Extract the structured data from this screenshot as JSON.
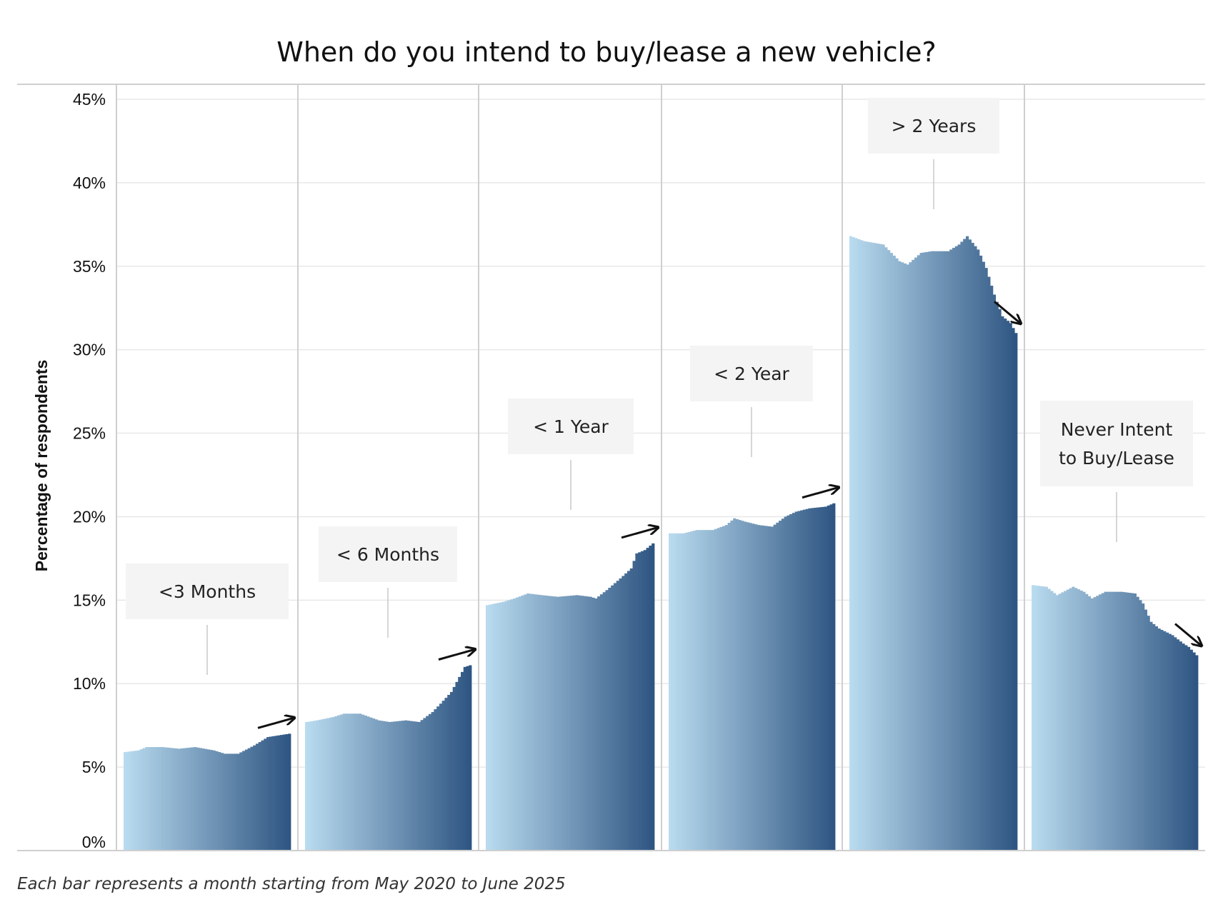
{
  "chart_data": {
    "type": "bar",
    "title": "When do you intend to buy/lease a new vehicle?",
    "ylabel": "Percentage of respondents",
    "ylim": [
      0,
      45
    ],
    "yticks": [
      "0%",
      "5%",
      "10%",
      "15%",
      "20%",
      "25%",
      "30%",
      "35%",
      "40%",
      "45%"
    ],
    "grid": true,
    "caption": "Each bar represents a month starting from May 2020 to June 2025",
    "colors": {
      "start": "#b9dbef",
      "end": "#2f5683",
      "gridline": "#e8e8e8",
      "divider": "#cfcfcf",
      "label_bg": "#f4f4f4"
    },
    "series": [
      {
        "name": "<3 Months",
        "trend": "up",
        "anchors": [
          [
            0,
            5.9
          ],
          [
            5,
            6.0
          ],
          [
            8,
            6.2
          ],
          [
            14,
            6.2
          ],
          [
            20,
            6.1
          ],
          [
            26,
            6.2
          ],
          [
            33,
            6.0
          ],
          [
            37,
            5.8
          ],
          [
            42,
            5.8
          ],
          [
            48,
            6.3
          ],
          [
            53,
            6.8
          ],
          [
            61,
            7.0
          ]
        ]
      },
      {
        "name": "< 6 Months",
        "trend": "up",
        "anchors": [
          [
            0,
            7.7
          ],
          [
            4,
            7.8
          ],
          [
            10,
            8.0
          ],
          [
            14,
            8.2
          ],
          [
            20,
            8.2
          ],
          [
            27,
            7.8
          ],
          [
            31,
            7.7
          ],
          [
            37,
            7.8
          ],
          [
            42,
            7.7
          ],
          [
            47,
            8.3
          ],
          [
            50,
            8.8
          ],
          [
            54,
            9.5
          ],
          [
            57,
            10.4
          ],
          [
            59,
            11.0
          ],
          [
            61,
            11.1
          ]
        ]
      },
      {
        "name": "< 1 Year",
        "trend": "up",
        "anchors": [
          [
            0,
            14.7
          ],
          [
            6,
            14.9
          ],
          [
            10,
            15.1
          ],
          [
            15,
            15.4
          ],
          [
            20,
            15.3
          ],
          [
            26,
            15.2
          ],
          [
            33,
            15.3
          ],
          [
            38,
            15.2
          ],
          [
            40,
            15.1
          ],
          [
            44,
            15.6
          ],
          [
            49,
            16.3
          ],
          [
            53,
            16.9
          ],
          [
            55,
            17.8
          ],
          [
            58,
            18.0
          ],
          [
            61,
            18.4
          ]
        ]
      },
      {
        "name": "< 2 Year",
        "trend": "up",
        "anchors": [
          [
            0,
            19.0
          ],
          [
            5,
            19.0
          ],
          [
            10,
            19.2
          ],
          [
            16,
            19.2
          ],
          [
            21,
            19.5
          ],
          [
            24,
            19.9
          ],
          [
            28,
            19.7
          ],
          [
            33,
            19.5
          ],
          [
            38,
            19.4
          ],
          [
            43,
            20.0
          ],
          [
            47,
            20.3
          ],
          [
            52,
            20.5
          ],
          [
            58,
            20.6
          ],
          [
            61,
            20.8
          ]
        ]
      },
      {
        "name": "> 2 Years",
        "trend": "down",
        "anchors": [
          [
            0,
            36.8
          ],
          [
            5,
            36.5
          ],
          [
            12,
            36.3
          ],
          [
            18,
            35.3
          ],
          [
            21,
            35.1
          ],
          [
            26,
            35.8
          ],
          [
            30,
            35.9
          ],
          [
            36,
            35.9
          ],
          [
            40,
            36.3
          ],
          [
            43,
            36.8
          ],
          [
            47,
            36.0
          ],
          [
            50,
            34.9
          ],
          [
            53,
            33.3
          ],
          [
            56,
            32.0
          ],
          [
            59,
            31.6
          ],
          [
            61,
            31.0
          ]
        ]
      },
      {
        "name": "Never Intent to Buy/Lease",
        "trend": "down",
        "anchors": [
          [
            0,
            15.9
          ],
          [
            5,
            15.8
          ],
          [
            9,
            15.3
          ],
          [
            15,
            15.8
          ],
          [
            19,
            15.5
          ],
          [
            22,
            15.1
          ],
          [
            27,
            15.5
          ],
          [
            33,
            15.5
          ],
          [
            38,
            15.4
          ],
          [
            41,
            14.8
          ],
          [
            44,
            13.7
          ],
          [
            47,
            13.3
          ],
          [
            52,
            12.9
          ],
          [
            56,
            12.4
          ],
          [
            58,
            12.2
          ],
          [
            61,
            11.7
          ]
        ]
      }
    ]
  }
}
